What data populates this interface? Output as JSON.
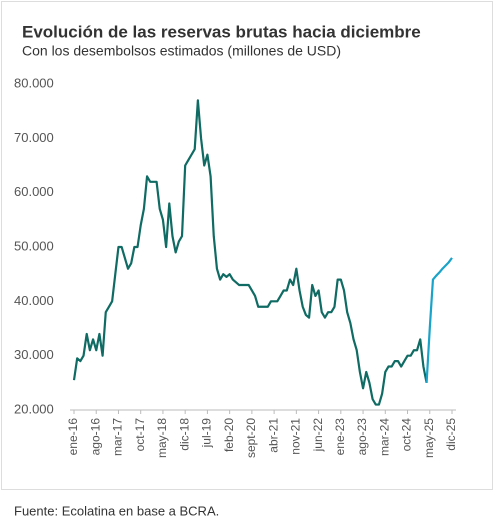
{
  "chart_data": {
    "type": "line",
    "title": "Evolución de las reservas brutas hacia diciembre",
    "subtitle": "Con los desembolsos estimados (millones de USD)",
    "source": "Fuente: Ecolatina en base a BCRA.",
    "categories": [
      "ene-16",
      null,
      null,
      null,
      null,
      null,
      null,
      "ago-16",
      null,
      null,
      null,
      null,
      null,
      null,
      "mar-17",
      null,
      null,
      null,
      null,
      null,
      null,
      "oct-17",
      null,
      null,
      null,
      null,
      null,
      null,
      "may-18",
      null,
      null,
      null,
      null,
      null,
      null,
      "dic-18",
      null,
      null,
      null,
      null,
      null,
      null,
      "jul-19",
      null,
      null,
      null,
      null,
      null,
      null,
      "feb-20",
      null,
      null,
      null,
      null,
      null,
      null,
      "sept-20",
      null,
      null,
      null,
      null,
      null,
      null,
      "abr-21",
      null,
      null,
      null,
      null,
      null,
      null,
      "nov-21",
      null,
      null,
      null,
      null,
      null,
      null,
      "jun-22",
      null,
      null,
      null,
      null,
      null,
      null,
      "ene-23",
      null,
      null,
      null,
      null,
      null,
      null,
      "ago-23",
      null,
      null,
      null,
      null,
      null,
      null,
      "mar-24",
      null,
      null,
      null,
      null,
      null,
      null,
      "oct-24",
      null,
      null,
      null,
      null,
      null,
      null,
      "may-25",
      null,
      null,
      null,
      null,
      null,
      null,
      "dic-25"
    ],
    "series": [
      {
        "color": "#0f6b63",
        "values": [
          25500,
          29500,
          29000,
          30000,
          34000,
          31000,
          33000,
          31000,
          34000,
          30000,
          38000,
          39000,
          40000,
          45000,
          50000,
          50000,
          48000,
          46000,
          47000,
          50000,
          50000,
          54000,
          57000,
          63000,
          62000,
          62000,
          62000,
          57000,
          55000,
          50000,
          58000,
          52000,
          49000,
          51000,
          52000,
          65000,
          66000,
          67000,
          68000,
          77000,
          70000,
          65000,
          67000,
          63000,
          52000,
          46000,
          44000,
          45000,
          44500,
          45000,
          44000,
          43500,
          43000,
          43000,
          43000,
          43000,
          42000,
          41000,
          39000,
          39000,
          39000,
          39000,
          40000,
          40000,
          40000,
          41000,
          42000,
          42000,
          44000,
          43000,
          46000,
          42000,
          39000,
          37500,
          37000,
          43000,
          41000,
          42000,
          38000,
          37000,
          38000,
          38000,
          39000,
          44000,
          44000,
          42000,
          38000,
          36000,
          33000,
          31000,
          27000,
          24000,
          27000,
          25000,
          22000,
          21000,
          21000,
          23000,
          27000,
          28000,
          28000,
          29000,
          29000,
          28000,
          29000,
          30000,
          30000,
          31000,
          31000,
          33000,
          28000,
          25000,
          null,
          null,
          null,
          null,
          null,
          null,
          null,
          null
        ]
      },
      {
        "color": "#1aa3c8",
        "values": [
          null,
          null,
          null,
          null,
          null,
          null,
          null,
          null,
          null,
          null,
          null,
          null,
          null,
          null,
          null,
          null,
          null,
          null,
          null,
          null,
          null,
          null,
          null,
          null,
          null,
          null,
          null,
          null,
          null,
          null,
          null,
          null,
          null,
          null,
          null,
          null,
          null,
          null,
          null,
          null,
          null,
          null,
          null,
          null,
          null,
          null,
          null,
          null,
          null,
          null,
          null,
          null,
          null,
          null,
          null,
          null,
          null,
          null,
          null,
          null,
          null,
          null,
          null,
          null,
          null,
          null,
          null,
          null,
          null,
          null,
          null,
          null,
          null,
          null,
          null,
          null,
          null,
          null,
          null,
          null,
          null,
          null,
          null,
          null,
          null,
          null,
          null,
          null,
          null,
          null,
          null,
          null,
          null,
          null,
          null,
          null,
          null,
          null,
          null,
          null,
          null,
          null,
          null,
          null,
          null,
          null,
          null,
          null,
          null,
          null,
          null,
          25000,
          35000,
          44000,
          44700,
          45300,
          46000,
          46600,
          47200,
          48000
        ]
      }
    ],
    "ylim": [
      20000,
      80000
    ],
    "yticks": [
      {
        "value": 20000,
        "label": "20.000"
      },
      {
        "value": 30000,
        "label": "30.000"
      },
      {
        "value": 40000,
        "label": "40.000"
      },
      {
        "value": 50000,
        "label": "50.000"
      },
      {
        "value": 60000,
        "label": "60.000"
      },
      {
        "value": 70000,
        "label": "70.000"
      },
      {
        "value": 80000,
        "label": "80.000"
      }
    ]
  }
}
